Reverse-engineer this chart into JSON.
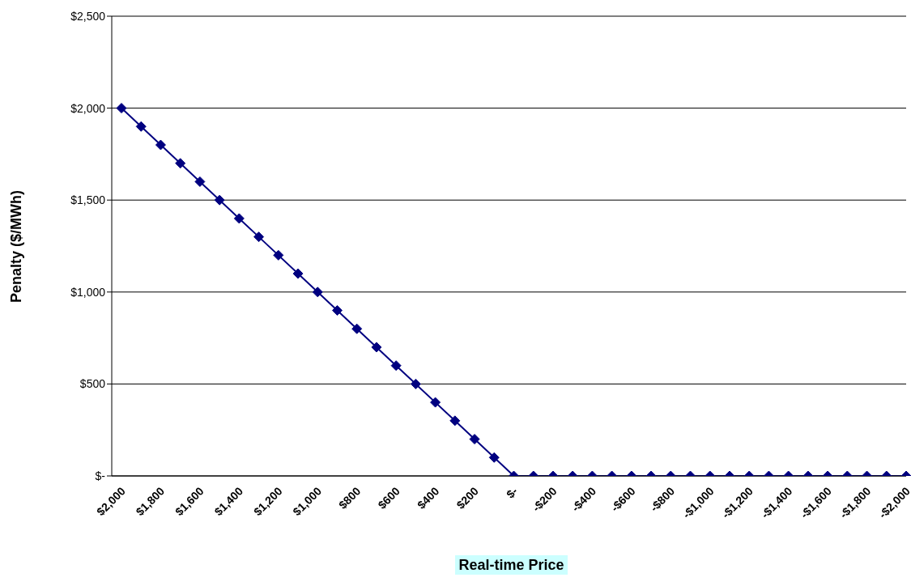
{
  "chart_data": {
    "type": "line",
    "xlabel": "Real-time Price",
    "ylabel": "Penalty ($/MWh)",
    "categories": [
      "$2,000",
      null,
      "$1,800",
      null,
      "$1,600",
      null,
      "$1,400",
      null,
      "$1,200",
      null,
      "$1,000",
      null,
      "$800",
      null,
      "$600",
      null,
      "$400",
      null,
      "$200",
      null,
      "$-",
      null,
      "-$200",
      null,
      "-$400",
      null,
      "-$600",
      null,
      "-$800",
      null,
      "-$1,000",
      null,
      "-$1,200",
      null,
      "-$1,400",
      null,
      "-$1,600",
      null,
      "-$1,800",
      null,
      "-$2,000"
    ],
    "series": [
      {
        "color": "#000080",
        "values": [
          2000,
          1900,
          1800,
          1700,
          1600,
          1500,
          1400,
          1300,
          1200,
          1100,
          1000,
          900,
          800,
          700,
          600,
          500,
          400,
          300,
          200,
          100,
          0,
          0,
          0,
          0,
          0,
          0,
          0,
          0,
          0,
          0,
          0,
          0,
          0,
          0,
          0,
          0,
          0,
          0,
          0,
          0,
          0
        ]
      }
    ],
    "ylim": [
      0,
      2500
    ],
    "yticks": [
      {
        "value": 0,
        "label": "$-"
      },
      {
        "value": 500,
        "label": "$500"
      },
      {
        "value": 1000,
        "label": "$1,000"
      },
      {
        "value": 1500,
        "label": "$1,500"
      },
      {
        "value": 2000,
        "label": "$2,000"
      },
      {
        "value": 2500,
        "label": "$2,500"
      }
    ],
    "grid": "y",
    "legend": false,
    "marker": "diamond",
    "line_style": "solid"
  }
}
